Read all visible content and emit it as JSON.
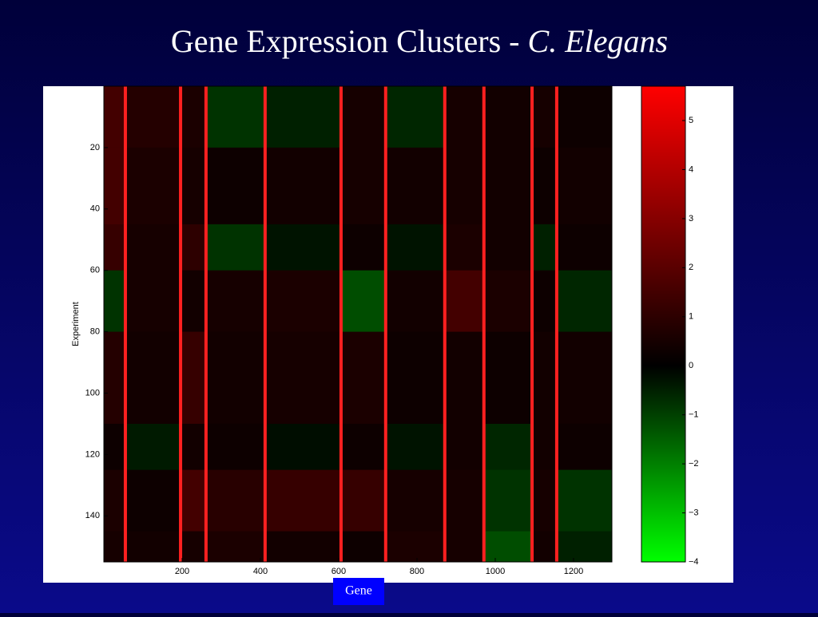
{
  "chart_data": {
    "type": "heatmap",
    "title": {
      "prefix": "Gene Expression Clusters -",
      "italic": "C. Elegans"
    },
    "x_label": "Gene",
    "y_label": "Experiment",
    "x_edges": [
      0,
      55,
      196,
      261,
      412,
      606,
      720,
      871,
      971,
      1094,
      1157,
      1298
    ],
    "y_edges": [
      0,
      20,
      45,
      60,
      80,
      110,
      125,
      145,
      155
    ],
    "values": [
      [
        1.5,
        0.8,
        0.6,
        -0.8,
        -0.5,
        0.5,
        -0.6,
        0.5,
        0.4,
        0.5,
        0.3
      ],
      [
        1.5,
        0.6,
        0.5,
        0.3,
        0.4,
        0.5,
        0.4,
        0.5,
        0.4,
        0.3,
        0.4
      ],
      [
        1.2,
        0.5,
        1.0,
        -0.8,
        -0.3,
        0.3,
        -0.3,
        0.6,
        0.4,
        -0.5,
        0.3
      ],
      [
        -0.8,
        0.5,
        0.4,
        0.5,
        0.6,
        -1.2,
        0.4,
        1.5,
        0.6,
        0.3,
        -0.6
      ],
      [
        0.8,
        0.4,
        1.2,
        0.4,
        0.5,
        0.6,
        0.3,
        0.4,
        0.3,
        0.4,
        0.4
      ],
      [
        0.3,
        -0.4,
        0.4,
        0.3,
        -0.2,
        0.3,
        -0.3,
        0.4,
        -0.6,
        0.4,
        0.3
      ],
      [
        0.6,
        0.3,
        1.5,
        0.9,
        1.2,
        1.2,
        0.5,
        0.5,
        -0.8,
        0.5,
        -0.8
      ],
      [
        0.5,
        0.4,
        0.5,
        0.6,
        0.4,
        0.3,
        0.6,
        0.5,
        -1.2,
        0.4,
        -0.5
      ]
    ],
    "cluster_boundaries": [
      55,
      196,
      261,
      412,
      606,
      720,
      871,
      971,
      1094,
      1157
    ],
    "boundary_color": "#ff2020",
    "xlim": [
      0,
      1298
    ],
    "ylim": [
      0,
      155
    ],
    "xticks": [
      200,
      400,
      600,
      800,
      1000,
      1200
    ],
    "yticks": [
      20,
      40,
      60,
      80,
      100,
      120,
      140
    ],
    "clim": [
      -4,
      5.7
    ],
    "colorbar_ticks": [
      {
        "value": -4,
        "label": "−4"
      },
      {
        "value": -3,
        "label": "−3"
      },
      {
        "value": -2,
        "label": "−2"
      },
      {
        "value": -1,
        "label": "−1"
      },
      0,
      1,
      2,
      3,
      4,
      5
    ],
    "colors": {
      "high": "#ff0000",
      "mid": "#000000",
      "low": "#00ff00"
    }
  }
}
